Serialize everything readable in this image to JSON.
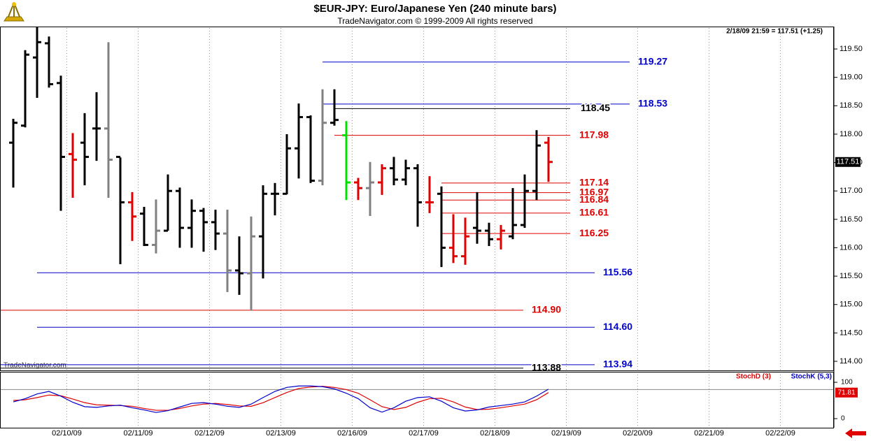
{
  "chart_data": [
    {
      "type": "ohlc",
      "title": "$EUR-JPY:  Euro/Japanese Yen  (240 minute bars)",
      "subtitle": "TradeNavigator.com © 1999-2009 All rights reserved",
      "annotation": "2/18/09 21:59 = 117.51 (+1.25)",
      "watermark": "TradeNavigator.com",
      "categories": [
        null,
        null,
        null,
        null,
        null,
        "02/10/09",
        null,
        null,
        null,
        null,
        null,
        "02/11/09",
        null,
        null,
        null,
        null,
        null,
        "02/12/09",
        null,
        null,
        null,
        null,
        null,
        "02/13/09",
        null,
        null,
        null,
        null,
        null,
        "02/16/09",
        null,
        null,
        null,
        null,
        null,
        "02/17/09",
        null,
        null,
        null,
        null,
        null,
        "02/18/09",
        null,
        null,
        null,
        null,
        null,
        "02/19/09",
        null,
        null,
        null,
        null,
        null,
        "02/20/09",
        null,
        null,
        null,
        null,
        null,
        "02/21/09",
        null,
        null,
        null,
        null,
        null,
        "02/22/09",
        null,
        null,
        null,
        null
      ],
      "open": [
        117.85,
        118.15,
        119.35,
        119.6,
        118.9,
        117.65,
        117.85,
        118.1,
        118.1,
        117.6,
        116.8,
        116.6,
        116.05,
        116.3,
        117.0,
        116.35,
        116.65,
        116.45,
        116.25,
        115.6,
        115.55,
        116.2,
        116.95,
        116.95,
        117.75,
        118.3,
        117.18,
        118.2,
        117.98,
        117.15,
        117.05,
        117.15,
        117.4,
        117.2,
        117.4,
        116.8,
        116.95,
        116.0,
        115.85,
        116.35,
        116.3,
        116.15,
        116.2,
        116.4,
        117.0,
        117.85,
        null,
        null,
        null,
        null,
        null,
        null,
        null,
        null,
        null,
        null,
        null,
        null,
        null,
        null,
        null,
        null,
        null,
        null,
        null,
        null,
        null,
        null,
        null,
        null
      ],
      "high": [
        118.27,
        119.48,
        119.89,
        119.72,
        119.03,
        118.02,
        118.37,
        118.74,
        119.62,
        117.59,
        116.98,
        116.72,
        116.85,
        117.29,
        117.06,
        116.85,
        116.7,
        116.67,
        116.67,
        116.2,
        116.55,
        117.1,
        117.14,
        118.0,
        118.54,
        118.33,
        118.79,
        118.79,
        118.23,
        117.23,
        117.51,
        117.47,
        117.6,
        117.55,
        117.47,
        117.26,
        117.08,
        116.59,
        116.53,
        116.98,
        116.44,
        116.4,
        117.05,
        117.29,
        118.07,
        117.95,
        null,
        null,
        null,
        null,
        null,
        null,
        null,
        null,
        null,
        null,
        null,
        null,
        null,
        null,
        null,
        null,
        null,
        null,
        null,
        null,
        null,
        null,
        null,
        null
      ],
      "low": [
        117.06,
        118.12,
        118.64,
        118.82,
        116.65,
        116.88,
        117.1,
        117.53,
        116.88,
        115.71,
        116.12,
        116.03,
        115.9,
        116.3,
        116.0,
        116.0,
        115.93,
        115.96,
        115.22,
        115.17,
        114.89,
        115.46,
        116.57,
        116.94,
        117.22,
        117.14,
        117.1,
        118.15,
        116.84,
        116.84,
        116.56,
        116.93,
        117.1,
        117.1,
        116.37,
        116.61,
        115.66,
        115.73,
        115.7,
        116.07,
        116.03,
        115.97,
        116.15,
        116.35,
        116.84,
        117.16,
        null,
        null,
        null,
        null,
        null,
        null,
        null,
        null,
        null,
        null,
        null,
        null,
        null,
        null,
        null,
        null,
        null,
        null,
        null,
        null,
        null,
        null,
        null,
        null
      ],
      "close": [
        118.2,
        119.4,
        119.62,
        118.88,
        117.6,
        117.55,
        117.6,
        118.1,
        117.55,
        116.8,
        116.55,
        116.05,
        116.3,
        117.0,
        116.35,
        116.65,
        116.45,
        116.25,
        115.6,
        115.55,
        116.2,
        116.95,
        116.95,
        117.75,
        118.3,
        117.18,
        118.2,
        118.25,
        117.15,
        117.05,
        117.15,
        117.4,
        117.2,
        117.4,
        116.8,
        116.8,
        116.0,
        115.85,
        116.2,
        116.3,
        116.15,
        116.3,
        116.4,
        117.0,
        117.8,
        117.51,
        null,
        null,
        null,
        null,
        null,
        null,
        null,
        null,
        null,
        null,
        null,
        null,
        null,
        null,
        null,
        null,
        null,
        null,
        null,
        null,
        null,
        null,
        null,
        null
      ],
      "colors": [
        "#000000",
        "#000000",
        "#000000",
        "#000000",
        "#000000",
        "#e00000",
        "#000000",
        "#000000",
        "#808080",
        "#000000",
        "#e00000",
        "#000000",
        "#808080",
        "#000000",
        "#000000",
        "#000000",
        "#000000",
        "#000000",
        "#808080",
        "#000000",
        "#808080",
        "#000000",
        "#000000",
        "#000000",
        "#000000",
        "#000000",
        "#808080",
        "#000000",
        "#00e000",
        "#e00000",
        "#808080",
        "#e00000",
        "#000000",
        "#000000",
        "#000000",
        "#e00000",
        "#000000",
        "#e00000",
        "#e00000",
        "#000000",
        "#000000",
        "#e00000",
        "#000000",
        "#000000",
        "#000000",
        "#e00000",
        null,
        null,
        null,
        null,
        null,
        null,
        null,
        null,
        null,
        null,
        null,
        null,
        null,
        null,
        null,
        null,
        null,
        null,
        null,
        null,
        null,
        null,
        null,
        null
      ],
      "levels": [
        {
          "value": 119.27,
          "label": "119.27",
          "color": "#0000cc"
        },
        {
          "value": 118.53,
          "label": "118.53",
          "color": "#0000cc"
        },
        {
          "value": 118.45,
          "label": "118.45",
          "color": "#000000"
        },
        {
          "value": 117.98,
          "label": "117.98",
          "color": "#e00000"
        },
        {
          "value": 117.14,
          "label": "117.14",
          "color": "#e00000"
        },
        {
          "value": 116.97,
          "label": "116.97",
          "color": "#e00000"
        },
        {
          "value": 116.84,
          "label": "116.84",
          "color": "#e00000"
        },
        {
          "value": 116.61,
          "label": "116.61",
          "color": "#e00000"
        },
        {
          "value": 116.25,
          "label": "116.25",
          "color": "#e00000"
        },
        {
          "value": 115.56,
          "label": "115.56",
          "color": "#0000cc"
        },
        {
          "value": 114.9,
          "label": "114.90",
          "color": "#e00000"
        },
        {
          "value": 114.6,
          "label": "114.60",
          "color": "#0000cc"
        },
        {
          "value": 113.94,
          "label": "113.94",
          "color": "#0000cc"
        },
        {
          "value": 113.88,
          "label": "113.88",
          "color": "#000000"
        }
      ],
      "ylim": [
        113.84,
        119.87
      ],
      "yticks": [
        {
          "value": 114,
          "label": "114.00"
        },
        {
          "value": 114.5,
          "label": "114.50"
        },
        {
          "value": 115,
          "label": "115.00"
        },
        {
          "value": 115.5,
          "label": "115.50"
        },
        {
          "value": 116,
          "label": "116.00"
        },
        {
          "value": 116.5,
          "label": "116.50"
        },
        {
          "value": 117,
          "label": "117.00"
        },
        {
          "value": 117.5,
          "label": "117.50"
        },
        {
          "value": 118,
          "label": "118.00"
        },
        {
          "value": 118.5,
          "label": "118.50"
        },
        {
          "value": 119,
          "label": "119.00"
        },
        {
          "value": 119.5,
          "label": "119.50"
        }
      ],
      "grid": true
    },
    {
      "type": "line",
      "series": [
        {
          "name": "StochD (3)",
          "color": "#e00000",
          "values": [
            50,
            52,
            58,
            65,
            63,
            54,
            44,
            38,
            37,
            36,
            34,
            28,
            23,
            23,
            28,
            35,
            40,
            42,
            39,
            35,
            34,
            44,
            58,
            72,
            83,
            87,
            89,
            86,
            80,
            70,
            52,
            33,
            25,
            31,
            45,
            55,
            56,
            46,
            32,
            25,
            26,
            30,
            35,
            40,
            52,
            71.81,
            null,
            null,
            null,
            null,
            null,
            null,
            null,
            null,
            null,
            null,
            null,
            null,
            null,
            null,
            null,
            null,
            null,
            null,
            null,
            null,
            null,
            null,
            null,
            null
          ]
        },
        {
          "name": "StochK (5,3)",
          "color": "#0000cc",
          "values": [
            46,
            55,
            68,
            75,
            62,
            45,
            33,
            31,
            35,
            37,
            30,
            24,
            17,
            22,
            32,
            42,
            44,
            40,
            34,
            31,
            40,
            58,
            75,
            86,
            90,
            90,
            88,
            82,
            70,
            55,
            30,
            18,
            30,
            48,
            58,
            60,
            48,
            30,
            21,
            24,
            32,
            36,
            40,
            46,
            62,
            81,
            null,
            null,
            null,
            null,
            null,
            null,
            null,
            null,
            null,
            null,
            null,
            null,
            null,
            null,
            null,
            null,
            null,
            null,
            null,
            null,
            null,
            null,
            null,
            null
          ]
        }
      ],
      "ylim": [
        -25,
        127
      ],
      "yticks": [
        0,
        100
      ],
      "guide_lines": [
        80
      ]
    }
  ]
}
